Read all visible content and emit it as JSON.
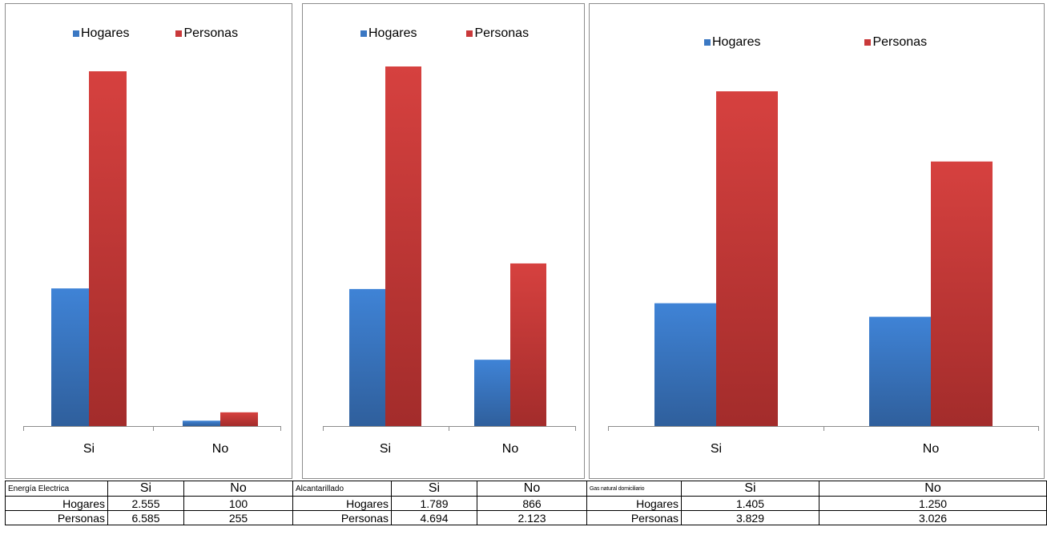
{
  "colors": {
    "hogares": "#3b78c3",
    "personas": "#c9393a"
  },
  "chart_data": [
    {
      "type": "bar",
      "categories": [
        "Si",
        "No"
      ],
      "series": [
        {
          "name": "Hogares",
          "values": [
            2555,
            100
          ]
        },
        {
          "name": "Personas",
          "values": [
            6585,
            255
          ]
        }
      ],
      "legend": "top",
      "grid": false
    },
    {
      "type": "bar",
      "categories": [
        "Si",
        "No"
      ],
      "series": [
        {
          "name": "Hogares",
          "values": [
            1789,
            866
          ]
        },
        {
          "name": "Personas",
          "values": [
            4694,
            2123
          ]
        }
      ],
      "legend": "top",
      "grid": false
    },
    {
      "type": "bar",
      "categories": [
        "Si",
        "No"
      ],
      "series": [
        {
          "name": "Hogares",
          "values": [
            1405,
            1250
          ]
        },
        {
          "name": "Personas",
          "values": [
            3829,
            3026
          ]
        }
      ],
      "legend": "top",
      "grid": false
    }
  ],
  "tables": [
    {
      "title": "Energía Electrica",
      "headers": [
        "Si",
        "No"
      ],
      "rows": [
        {
          "label": "Hogares",
          "values": [
            "2.555",
            "100"
          ]
        },
        {
          "label": "Personas",
          "values": [
            "6.585",
            "255"
          ]
        }
      ]
    },
    {
      "title": "Alcantarillado",
      "headers": [
        "Si",
        "No"
      ],
      "rows": [
        {
          "label": "Hogares",
          "values": [
            "1.789",
            "866"
          ]
        },
        {
          "label": "Personas",
          "values": [
            "4.694",
            "2.123"
          ]
        }
      ]
    },
    {
      "title": "Gas natural domiciliario",
      "headers": [
        "Si",
        "No"
      ],
      "rows": [
        {
          "label": "Hogares",
          "values": [
            "1.405",
            "1.250"
          ]
        },
        {
          "label": "Personas",
          "values": [
            "3.829",
            "3.026"
          ]
        }
      ]
    }
  ]
}
